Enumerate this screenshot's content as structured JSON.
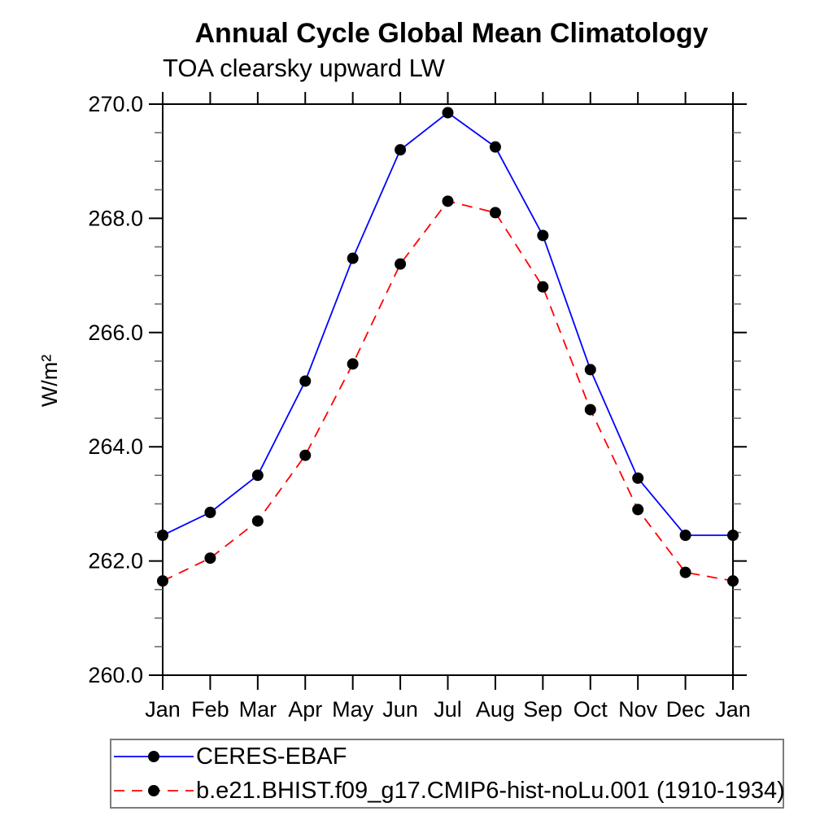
{
  "title": "Annual Cycle Global Mean Climatology",
  "subtitle": "TOA clearsky upward LW",
  "ylabel": "W/m²",
  "colors": {
    "obs_line": "#0000ff",
    "model_line": "#ff0000",
    "marker": "#000000",
    "axis": "#000000",
    "minor_tick": "#666666",
    "legend_border": "#7c7c7c",
    "background": "#ffffff"
  },
  "chart_data": {
    "type": "line",
    "categories": [
      "Jan",
      "Feb",
      "Mar",
      "Apr",
      "May",
      "Jun",
      "Jul",
      "Aug",
      "Sep",
      "Oct",
      "Nov",
      "Dec",
      "Jan"
    ],
    "series": [
      {
        "name": "CERES-EBAF",
        "color": "#0000ff",
        "dash": "solid",
        "marker": "filled-circle",
        "values": [
          262.45,
          262.85,
          263.5,
          265.15,
          267.3,
          269.2,
          269.85,
          269.25,
          267.7,
          265.35,
          263.45,
          262.45,
          262.45
        ]
      },
      {
        "name": "b.e21.BHIST.f09_g17.CMIP6-hist-noLu.001 (1910-1934)",
        "color": "#ff0000",
        "dash": "dashed",
        "marker": "filled-circle",
        "values": [
          261.65,
          262.05,
          262.7,
          263.85,
          265.45,
          267.2,
          268.3,
          268.1,
          266.8,
          264.65,
          262.9,
          261.8,
          261.65
        ]
      }
    ],
    "title": "Annual Cycle Global Mean Climatology",
    "subtitle": "TOA clearsky upward LW",
    "xlabel": "",
    "ylabel": "W/m²",
    "ylim": [
      260.0,
      270.0
    ],
    "y_major_tick_step": 2.0,
    "y_minor_tick_step": 0.5,
    "y_tick_labels": [
      "260.0",
      "262.0",
      "264.0",
      "266.0",
      "268.0",
      "270.0"
    ],
    "grid": false,
    "legend_position": "bottom"
  }
}
